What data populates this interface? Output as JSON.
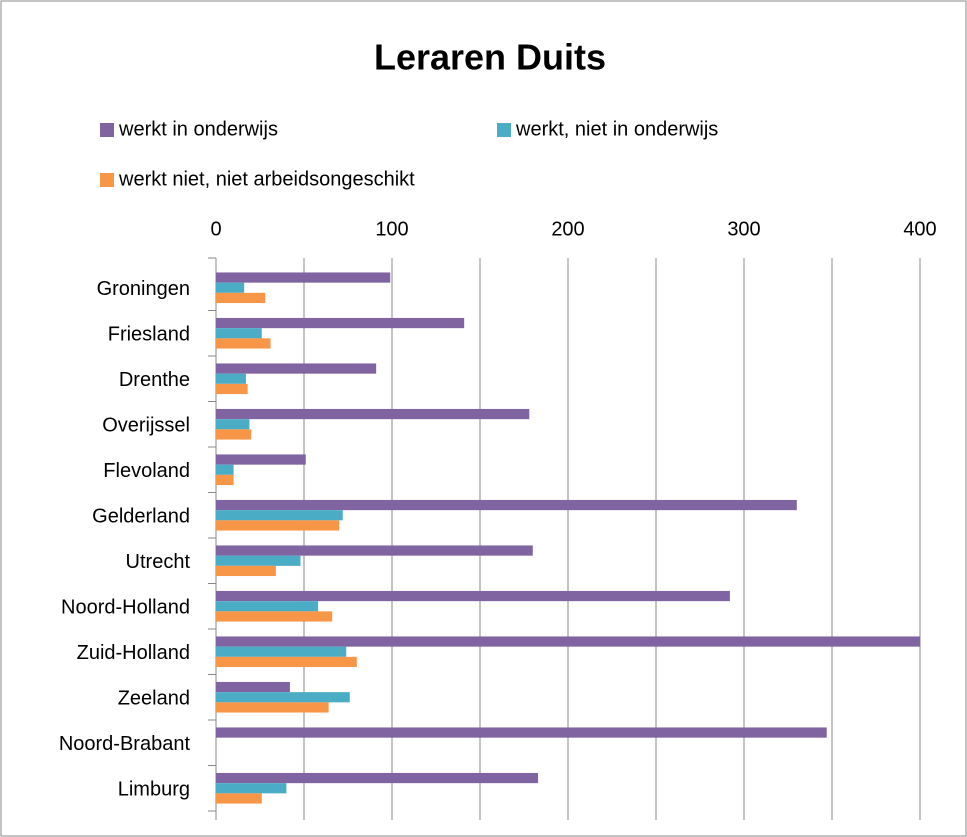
{
  "chart_data": {
    "type": "barh",
    "title": "Leraren Duits",
    "categories": [
      "Groningen",
      "Friesland",
      "Drenthe",
      "Overijssel",
      "Flevoland",
      "Gelderland",
      "Utrecht",
      "Noord-Holland",
      "Zuid-Holland",
      "Zeeland",
      "Noord-Brabant",
      "Limburg"
    ],
    "series": [
      {
        "name": "werkt in onderwijs",
        "color": "#8064a2",
        "values": [
          99,
          141,
          91,
          178,
          51,
          330,
          180,
          292,
          400,
          42,
          347,
          183
        ]
      },
      {
        "name": "werkt, niet in onderwijs",
        "color": "#4bacc6",
        "values": [
          16,
          26,
          17,
          19,
          10,
          72,
          48,
          58,
          74,
          76,
          0,
          40
        ]
      },
      {
        "name": "werkt niet, niet arbeidsongeschikt",
        "color": "#f79646",
        "values": [
          28,
          31,
          18,
          20,
          10,
          70,
          34,
          66,
          80,
          64,
          0,
          26
        ]
      }
    ],
    "xlim": [
      0,
      400
    ],
    "xticks": [
      0,
      100,
      200,
      300,
      400
    ],
    "xgrid_minor": [
      50,
      150,
      250,
      350
    ],
    "grid": true
  }
}
